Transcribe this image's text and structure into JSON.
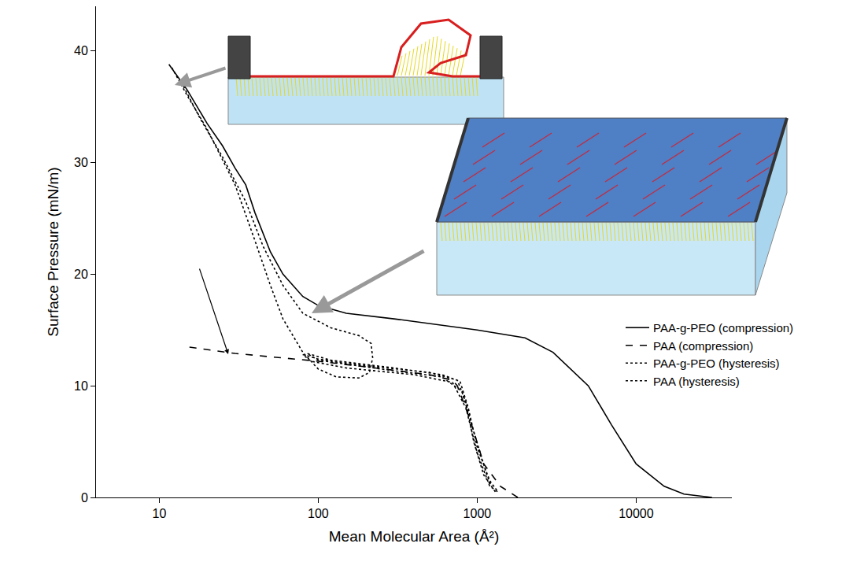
{
  "chart_data": {
    "type": "line",
    "xlabel": "Mean Molecular Area (Å²)",
    "ylabel": "Surface Pressure (mN/m)",
    "log": "x",
    "grid": false,
    "legend": "right",
    "xlim": [
      4,
      40000
    ],
    "ylim": [
      0,
      44
    ],
    "xticks": [
      10,
      100,
      1000,
      10000
    ],
    "yticks": [
      0,
      10,
      20,
      30,
      40
    ],
    "series": [
      {
        "name": "PAA-g-PEO (compression)",
        "color": "#000000",
        "line_style": "solid",
        "x": [
          30000,
          20000,
          15000,
          10000,
          7000,
          5000,
          3000,
          2000,
          1000,
          500,
          300,
          150,
          100,
          80,
          60,
          50,
          40,
          35,
          30,
          25,
          20,
          15,
          11.5
        ],
        "values": [
          0,
          0.3,
          1,
          3,
          6.5,
          10,
          13,
          14.3,
          15,
          15.6,
          16,
          16.5,
          17.2,
          18,
          20,
          22,
          25.5,
          28,
          29.5,
          31.5,
          33.5,
          36.5,
          38.8
        ]
      },
      {
        "name": "PAA (compression)",
        "color": "#000000",
        "line_style": "dashed",
        "x": [
          1800,
          1400,
          1100,
          900,
          750,
          700,
          500,
          300,
          200,
          100,
          50,
          30,
          15
        ],
        "values": [
          0,
          1,
          3,
          7,
          10,
          10.5,
          11,
          11.4,
          11.7,
          12.2,
          12.6,
          12.9,
          13.5
        ]
      },
      {
        "name": "PAA-g-PEO (hysteresis)",
        "color": "#000000",
        "line_style": "dotted",
        "x": [
          12,
          15,
          20,
          30,
          40,
          50,
          60,
          80,
          100,
          130,
          180,
          210,
          220,
          215,
          180,
          120,
          80,
          60,
          45,
          35,
          25,
          18,
          14
        ],
        "values": [
          38.5,
          36,
          33,
          28,
          23,
          19,
          16,
          13,
          11.5,
          10.8,
          10.7,
          11.2,
          12.5,
          13.8,
          14.5,
          15.2,
          16.5,
          19,
          22.5,
          26.5,
          30.5,
          34,
          37
        ]
      },
      {
        "name": "PAA (hysteresis)",
        "color": "#000000",
        "line_style": "dotted",
        "x": [
          1300,
          1100,
          950,
          850,
          750,
          500,
          200,
          100,
          80,
          90,
          150,
          400,
          700,
          850,
          1000,
          1200,
          1350,
          1200,
          1000,
          880,
          780,
          600,
          300,
          120,
          85,
          100,
          250,
          600,
          800,
          950,
          1150,
          1250
        ],
        "values": [
          0.5,
          2,
          5,
          8.5,
          10.5,
          11.2,
          11.8,
          12.4,
          12.8,
          12.2,
          11.6,
          11,
          10.3,
          8,
          4,
          1,
          0.5,
          1.5,
          4.5,
          8,
          10.4,
          11,
          11.6,
          12.3,
          12.9,
          12.3,
          11.5,
          10.8,
          9.5,
          6,
          2,
          0.8
        ]
      }
    ]
  }
}
